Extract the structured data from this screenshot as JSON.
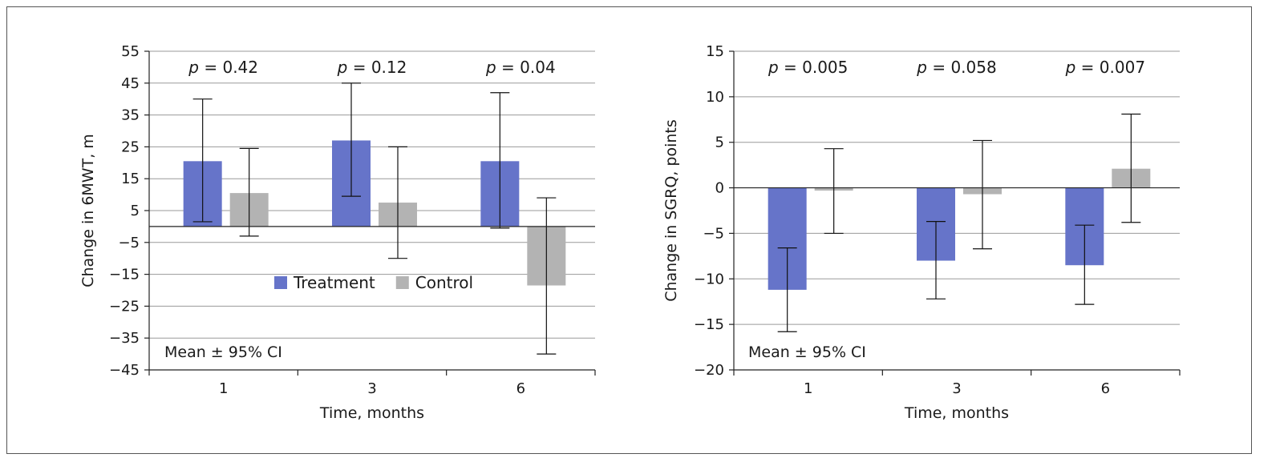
{
  "colors": {
    "treatment": "#6674c9",
    "control": "#b3b3b3"
  },
  "chart_data": [
    {
      "type": "bar",
      "categories": [
        "1",
        "3",
        "6"
      ],
      "xlabel": "Time, months",
      "ylabel": "Change in 6MWT, m",
      "ylim": [
        -45,
        55
      ],
      "yticks": [
        55,
        45,
        35,
        25,
        15,
        5,
        -5,
        -15,
        -25,
        -35,
        -45
      ],
      "ytick_labels": [
        "55",
        "45",
        "35",
        "25",
        "15",
        "5",
        "−5",
        "−15",
        "−25",
        "−35",
        "−45"
      ],
      "grid": true,
      "legend_position": "lower-middle",
      "note": "Mean ± 95% CI",
      "p_values": [
        "0.42",
        "0.12",
        "0.04"
      ],
      "series": [
        {
          "name": "Treatment",
          "values": [
            20.5,
            27,
            20.5
          ],
          "ci_low": [
            1.5,
            9.5,
            -0.5
          ],
          "ci_high": [
            40,
            45,
            42
          ]
        },
        {
          "name": "Control",
          "values": [
            10.5,
            7.5,
            -18.5
          ],
          "ci_low": [
            -3,
            -10,
            -40
          ],
          "ci_high": [
            24.5,
            25,
            9
          ]
        }
      ]
    },
    {
      "type": "bar",
      "categories": [
        "1",
        "3",
        "6"
      ],
      "xlabel": "Time, months",
      "ylabel": "Change in SGRQ, points",
      "ylim": [
        -20,
        15
      ],
      "yticks": [
        15,
        10,
        5,
        0,
        -5,
        -10,
        -15,
        -20
      ],
      "ytick_labels": [
        "15",
        "10",
        "5",
        "0",
        "−5",
        "−10",
        "−15",
        "−20"
      ],
      "grid": true,
      "note": "Mean ± 95% CI",
      "p_values": [
        "0.005",
        "0.058",
        "0.007"
      ],
      "series": [
        {
          "name": "Treatment",
          "values": [
            -11.2,
            -8,
            -8.5
          ],
          "ci_low": [
            -15.8,
            -12.2,
            -12.8
          ],
          "ci_high": [
            -6.6,
            -3.7,
            -4.1
          ]
        },
        {
          "name": "Control",
          "values": [
            -0.3,
            -0.7,
            2.1
          ],
          "ci_low": [
            -5,
            -6.7,
            -3.8
          ],
          "ci_high": [
            4.3,
            5.2,
            8.1
          ]
        }
      ]
    }
  ]
}
